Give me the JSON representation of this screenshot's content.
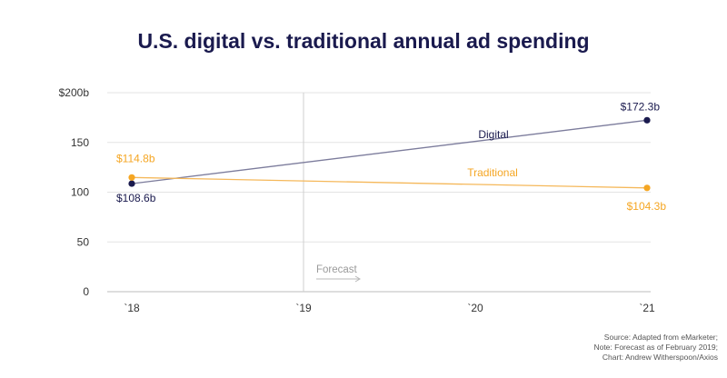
{
  "chart_data": {
    "type": "line",
    "title": "U.S. digital vs. traditional annual ad spending",
    "categories": [
      "`18",
      "`19",
      "`20",
      "`21"
    ],
    "x": [
      2018,
      2021
    ],
    "series": [
      {
        "name": "Digital",
        "values": [
          108.6,
          172.3
        ],
        "color": "#1a1a4e",
        "line_color": "#7c7c9c",
        "start_label": "$108.6b",
        "end_label": "$172.3b"
      },
      {
        "name": "Traditional",
        "values": [
          114.8,
          104.3
        ],
        "color": "#f5a623",
        "line_color": "#f5b85a",
        "start_label": "$114.8b",
        "end_label": "$104.3b"
      }
    ],
    "yticks": [
      {
        "value": 0,
        "label": "0"
      },
      {
        "value": 50,
        "label": "50"
      },
      {
        "value": 100,
        "label": "100"
      },
      {
        "value": 150,
        "label": "150"
      },
      {
        "value": 200,
        "label": "$200b"
      }
    ],
    "ylim": [
      0,
      200
    ],
    "xlim": [
      2018,
      2021
    ],
    "grid": true,
    "forecast_start": 2019,
    "forecast_label": "Forecast"
  },
  "source_lines": [
    "Source: Adapted from eMarketer;",
    "Note: Forecast as of February 2019;",
    "Chart: Andrew Witherspoon/Axios"
  ]
}
